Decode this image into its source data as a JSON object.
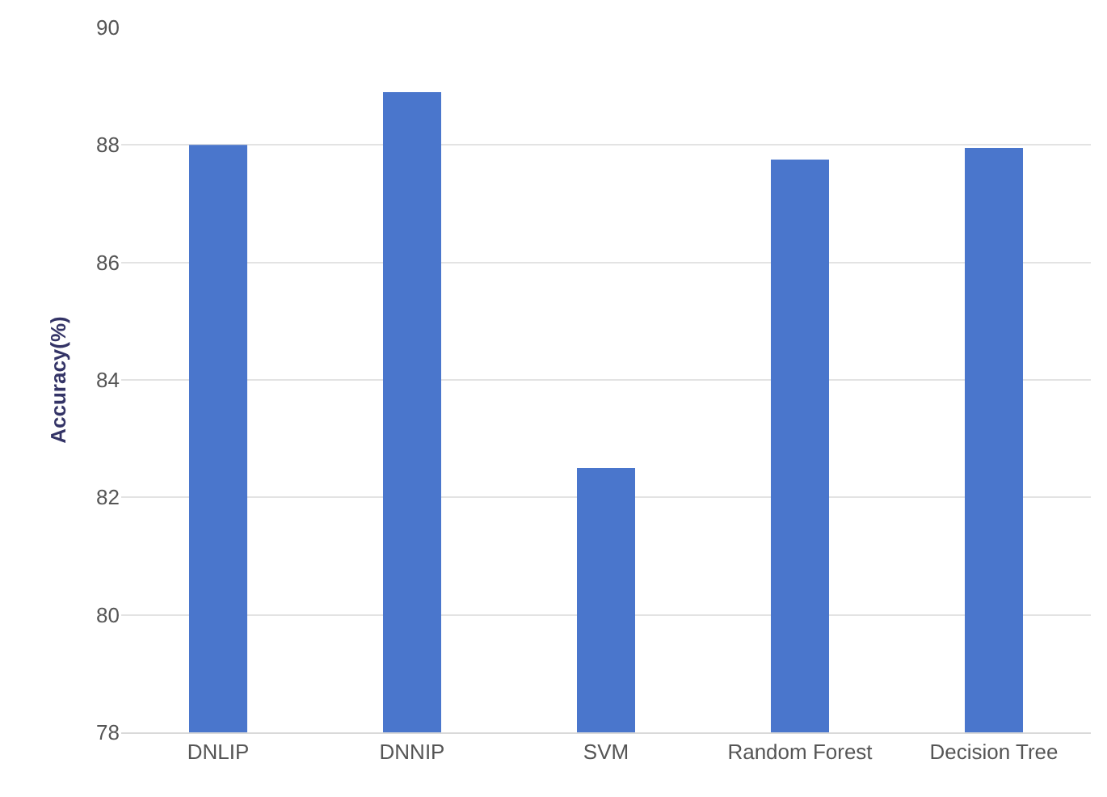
{
  "chart_data": {
    "type": "bar",
    "ylabel": "Accuracy(%)",
    "categories": [
      "DNLIP",
      "DNNIP",
      "SVM",
      "Random Forest",
      "Decision Tree"
    ],
    "values": [
      88.0,
      88.9,
      82.5,
      87.75,
      87.95
    ],
    "color": "#4a76cc",
    "ylim": [
      78,
      90
    ],
    "yticks": [
      78,
      80,
      82,
      84,
      86,
      88,
      90
    ],
    "grid": "y",
    "legend": false
  }
}
